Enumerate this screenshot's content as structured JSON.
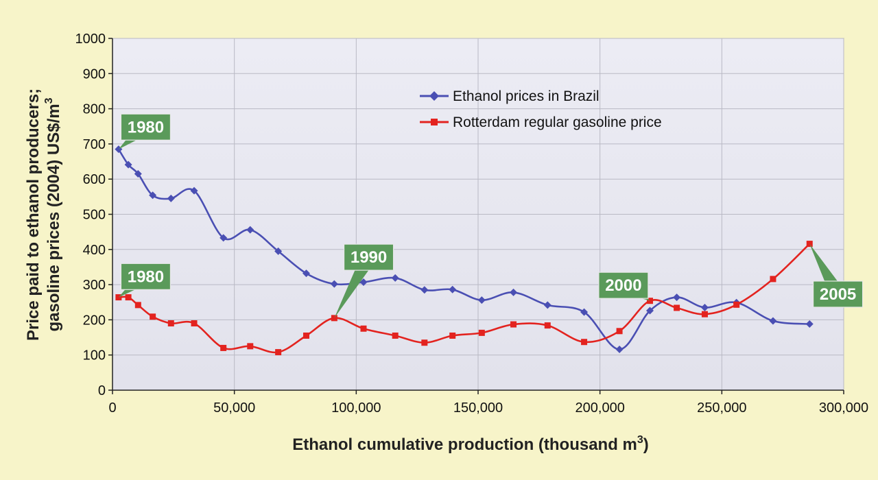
{
  "chart_data": {
    "type": "line",
    "title": "",
    "xlabel": "Ethanol cumulative production (thousand m",
    "xlabel_sup": "3",
    "xlabel_end": ")",
    "ylabel_line1": "Price paid to ethanol producers;",
    "ylabel_line2": "gasoline prices (2004) US$/m",
    "ylabel_sup": "3",
    "xlim": [
      0,
      300000
    ],
    "ylim": [
      0,
      1000
    ],
    "x_ticks": [
      0,
      50000,
      100000,
      150000,
      200000,
      250000,
      300000
    ],
    "x_tick_labels": [
      "0",
      "50,000",
      "100,000",
      "150,000",
      "200,000",
      "250,000",
      "300,000"
    ],
    "y_ticks": [
      0,
      100,
      200,
      300,
      400,
      500,
      600,
      700,
      800,
      900,
      1000
    ],
    "y_tick_labels": [
      "0",
      "100",
      "200",
      "300",
      "400",
      "500",
      "600",
      "700",
      "800",
      "900",
      "1000"
    ],
    "grid": true,
    "legend_position": "upper-right",
    "series": [
      {
        "name": "Ethanol prices in Brazil",
        "color": "#4a4fb3",
        "marker": "diamond",
        "points": [
          [
            2500,
            685
          ],
          [
            6500,
            641
          ],
          [
            10500,
            615
          ],
          [
            16500,
            554
          ],
          [
            24000,
            545
          ],
          [
            33500,
            567
          ],
          [
            45500,
            433
          ],
          [
            56500,
            456
          ],
          [
            68000,
            395
          ],
          [
            79500,
            332
          ],
          [
            91000,
            302
          ],
          [
            103000,
            307
          ],
          [
            116000,
            319
          ],
          [
            128000,
            285
          ],
          [
            139500,
            286
          ],
          [
            151500,
            256
          ],
          [
            164500,
            278
          ],
          [
            178500,
            242
          ],
          [
            193500,
            222
          ],
          [
            208000,
            116
          ],
          [
            220500,
            226
          ],
          [
            231500,
            264
          ],
          [
            243000,
            235
          ],
          [
            256000,
            249
          ],
          [
            271000,
            197
          ],
          [
            286000,
            188
          ]
        ]
      },
      {
        "name": "Rotterdam regular gasoline price",
        "color": "#e3231f",
        "marker": "square",
        "points": [
          [
            2500,
            264
          ],
          [
            6500,
            264
          ],
          [
            10500,
            242
          ],
          [
            16500,
            209
          ],
          [
            24000,
            190
          ],
          [
            33500,
            190
          ],
          [
            45500,
            120
          ],
          [
            56500,
            125
          ],
          [
            68000,
            108
          ],
          [
            79500,
            155
          ],
          [
            91000,
            205
          ],
          [
            103000,
            175
          ],
          [
            116000,
            155
          ],
          [
            128000,
            135
          ],
          [
            139500,
            155
          ],
          [
            151500,
            163
          ],
          [
            164500,
            187
          ],
          [
            178500,
            184
          ],
          [
            193500,
            137
          ],
          [
            208000,
            168
          ],
          [
            220500,
            254
          ],
          [
            231500,
            234
          ],
          [
            243000,
            216
          ],
          [
            256000,
            243
          ],
          [
            271000,
            316
          ],
          [
            286000,
            416
          ]
        ]
      }
    ],
    "annotations": [
      {
        "text": "1980",
        "point": [
          2500,
          685
        ],
        "box_x": 3500,
        "box_y": 785
      },
      {
        "text": "1980",
        "point": [
          2500,
          264
        ],
        "box_x": 3500,
        "box_y": 360
      },
      {
        "text": "1990",
        "point": [
          91000,
          205
        ],
        "box_x": 95000,
        "box_y": 415
      },
      {
        "text": "2000",
        "point": [
          220500,
          254
        ],
        "box_x": 199500,
        "box_y": 335
      },
      {
        "text": "2005",
        "point": [
          286000,
          416
        ],
        "box_x": 287500,
        "box_y": 310
      }
    ]
  }
}
